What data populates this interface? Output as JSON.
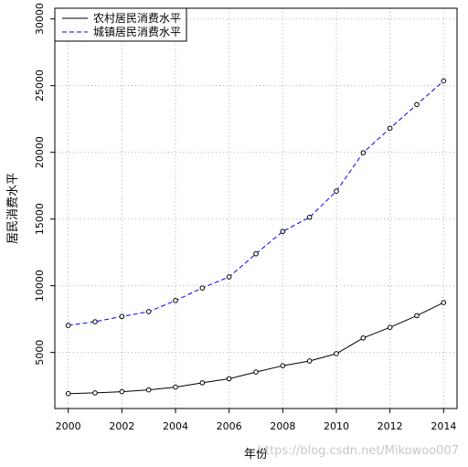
{
  "chart_data": {
    "type": "line",
    "xlabel": "年份",
    "ylabel": "居民消费水平",
    "x": [
      2000,
      2001,
      2002,
      2003,
      2004,
      2005,
      2006,
      2007,
      2008,
      2009,
      2010,
      2011,
      2012,
      2013,
      2014
    ],
    "xlim": [
      1999.5,
      2014.5
    ],
    "ylim": [
      800,
      30800
    ],
    "x_ticks": [
      2000,
      2002,
      2004,
      2006,
      2008,
      2010,
      2012,
      2014
    ],
    "y_ticks": [
      5000,
      10000,
      15000,
      20000,
      25000,
      30000
    ],
    "grid": true,
    "legend_position": "top-left",
    "series": [
      {
        "name": "农村居民消费水平",
        "values": [
          1917,
          1969,
          2062,
          2196,
          2405,
          2725,
          3035,
          3535,
          4007,
          4363,
          4913,
          6090,
          6883,
          7760,
          8740
        ],
        "line_style": "solid",
        "color": "#000000"
      },
      {
        "name": "城镇居民消费水平",
        "values": [
          7026,
          7305,
          7698,
          8062,
          8892,
          9832,
          10665,
          12395,
          14070,
          15135,
          17090,
          19970,
          21800,
          23580,
          25350
        ],
        "line_style": "dashed",
        "color": "#0000ff"
      }
    ]
  },
  "watermark": "https://blog.csdn.net/Mikowoo007"
}
